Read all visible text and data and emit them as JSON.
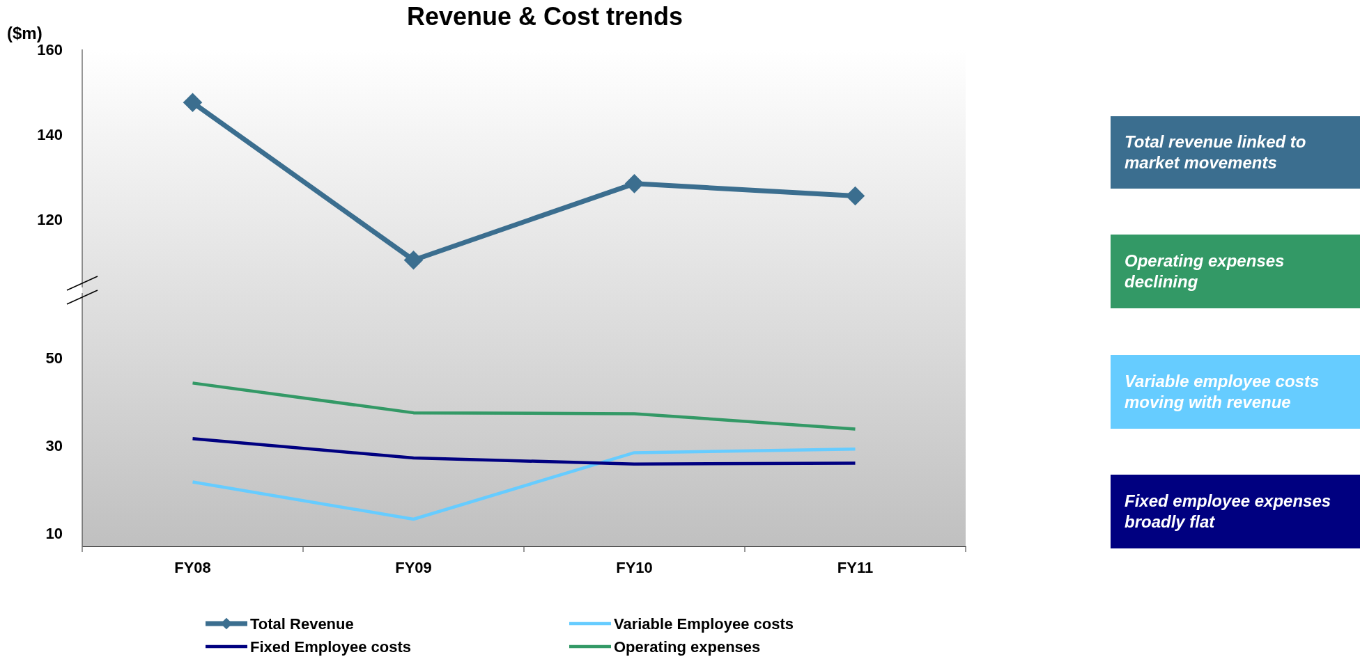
{
  "chart_data": {
    "type": "line",
    "title": "Revenue & Cost trends",
    "y2label": "($m)",
    "categories": [
      "FY08",
      "FY09",
      "FY10",
      "FY11"
    ],
    "ylim": [
      7,
      120.5
    ],
    "yticks": [
      10,
      30,
      50
    ],
    "y2lim": [
      43,
      160
    ],
    "y2ticks": [
      120,
      140,
      160
    ],
    "legend": "bottom",
    "series": [
      {
        "name": "Total Revenue",
        "color": "#3b6e8f",
        "axis": "y2",
        "marker": "diamond",
        "values": [
          147.5,
          110.4,
          128.4,
          125.5
        ]
      },
      {
        "name": "Operating expenses",
        "color": "#339966",
        "values": [
          44.3,
          37.5,
          37.3,
          33.8
        ]
      },
      {
        "name": "Variable Employee costs",
        "color": "#66ccff",
        "values": [
          21.7,
          13.2,
          28.4,
          29.2
        ]
      },
      {
        "name": "Fixed Employee costs",
        "color": "#000080",
        "values": [
          31.6,
          27.2,
          25.8,
          26
        ]
      }
    ],
    "annotations": [
      "Total revenue linked to market movements",
      "Operating expenses declining",
      "Variable employee costs moving with revenue",
      "Fixed employee expenses broadly flat"
    ]
  }
}
